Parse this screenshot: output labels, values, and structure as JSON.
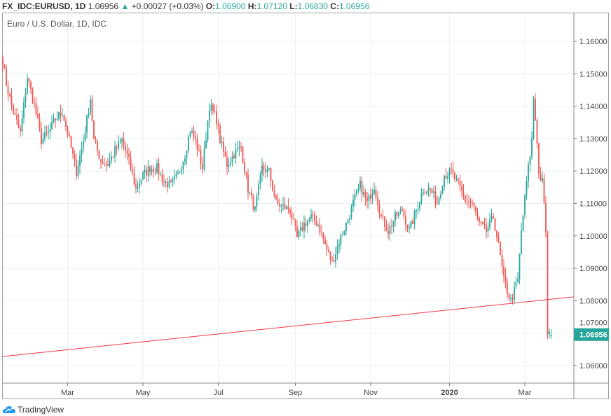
{
  "header": {
    "symbol": "FX_IDC:EURUSD, 1D",
    "last": "1.06956",
    "arrow": "▲",
    "change": "+0.00027 (+0.03%)",
    "o_label": "O:",
    "o": "1.06900",
    "h_label": "H:",
    "h": "1.07120",
    "l_label": "L:",
    "l": "1.06830",
    "c_label": "C:",
    "c": "1.06956"
  },
  "subtitle": "Euro / U.S. Dollar, 1D, IDC",
  "brand": "TradingView",
  "colors": {
    "up": "#26a69a",
    "down": "#ef5350",
    "grid": "#e8f0f4",
    "trend": "#f23645"
  },
  "chart_data": {
    "type": "candlestick",
    "title": "Euro / U.S. Dollar, 1D, IDC",
    "ylim": [
      1.0555,
      1.1695
    ],
    "yticks": [
      "1.16000",
      "1.15000",
      "1.14000",
      "1.13000",
      "1.12000",
      "1.11000",
      "1.10000",
      "1.09000",
      "1.08000",
      "1.07000",
      "1.06000"
    ],
    "xticks": [
      {
        "label": "Mar",
        "bar": 37
      },
      {
        "label": "May",
        "bar": 80
      },
      {
        "label": "Jul",
        "bar": 123
      },
      {
        "label": "Sep",
        "bar": 167
      },
      {
        "label": "Nov",
        "bar": 210
      },
      {
        "label": "2020",
        "bar": 255
      },
      {
        "label": "Mar",
        "bar": 298
      }
    ],
    "bars": 314,
    "last_price": "1.06956",
    "last_ohlc": [
      1.069,
      1.0712,
      1.0683,
      1.06956
    ],
    "trendline": {
      "start": 1.0628,
      "end": 1.0812
    },
    "close_anchors": [
      [
        0,
        1.1544
      ],
      [
        2,
        1.1468
      ],
      [
        6,
        1.1382
      ],
      [
        10,
        1.1317
      ],
      [
        14,
        1.149
      ],
      [
        18,
        1.1403
      ],
      [
        22,
        1.1295
      ],
      [
        26,
        1.1317
      ],
      [
        30,
        1.136
      ],
      [
        34,
        1.1382
      ],
      [
        38,
        1.1295
      ],
      [
        42,
        1.1198
      ],
      [
        46,
        1.1295
      ],
      [
        50,
        1.1425
      ],
      [
        52,
        1.1295
      ],
      [
        56,
        1.1231
      ],
      [
        60,
        1.122
      ],
      [
        64,
        1.1263
      ],
      [
        68,
        1.1295
      ],
      [
        72,
        1.1231
      ],
      [
        76,
        1.1144
      ],
      [
        80,
        1.1187
      ],
      [
        84,
        1.1209
      ],
      [
        88,
        1.1209
      ],
      [
        92,
        1.1166
      ],
      [
        96,
        1.1155
      ],
      [
        100,
        1.1187
      ],
      [
        104,
        1.1252
      ],
      [
        107,
        1.1328
      ],
      [
        110,
        1.1295
      ],
      [
        114,
        1.1209
      ],
      [
        118,
        1.1403
      ],
      [
        122,
        1.136
      ],
      [
        124,
        1.1295
      ],
      [
        128,
        1.122
      ],
      [
        132,
        1.1252
      ],
      [
        136,
        1.1274
      ],
      [
        140,
        1.1144
      ],
      [
        144,
        1.1079
      ],
      [
        148,
        1.1209
      ],
      [
        152,
        1.1198
      ],
      [
        156,
        1.1101
      ],
      [
        160,
        1.109
      ],
      [
        164,
        1.1079
      ],
      [
        168,
        1.0993
      ],
      [
        172,
        1.1036
      ],
      [
        176,
        1.1058
      ],
      [
        180,
        1.1036
      ],
      [
        184,
        1.0971
      ],
      [
        188,
        1.0917
      ],
      [
        192,
        1.0982
      ],
      [
        196,
        1.1036
      ],
      [
        200,
        1.1101
      ],
      [
        204,
        1.1155
      ],
      [
        208,
        1.1101
      ],
      [
        212,
        1.1155
      ],
      [
        216,
        1.1058
      ],
      [
        220,
        1.1015
      ],
      [
        224,
        1.1058
      ],
      [
        228,
        1.1079
      ],
      [
        232,
        1.1015
      ],
      [
        236,
        1.1079
      ],
      [
        240,
        1.1144
      ],
      [
        244,
        1.1144
      ],
      [
        248,
        1.1101
      ],
      [
        252,
        1.1187
      ],
      [
        256,
        1.1198
      ],
      [
        260,
        1.1155
      ],
      [
        264,
        1.1112
      ],
      [
        268,
        1.1101
      ],
      [
        272,
        1.1036
      ],
      [
        276,
        1.1015
      ],
      [
        280,
        1.1058
      ],
      [
        283,
        1.0971
      ],
      [
        286,
        1.0863
      ],
      [
        290,
        1.0799
      ],
      [
        294,
        1.0863
      ],
      [
        296,
        1.1015
      ],
      [
        299,
        1.1166
      ],
      [
        302,
        1.1295
      ],
      [
        303,
        1.1425
      ],
      [
        305,
        1.1295
      ],
      [
        306,
        1.1187
      ],
      [
        308,
        1.1166
      ],
      [
        310,
        1.1015
      ],
      [
        311,
        1.0691
      ],
      [
        313,
        1.0696
      ]
    ]
  }
}
